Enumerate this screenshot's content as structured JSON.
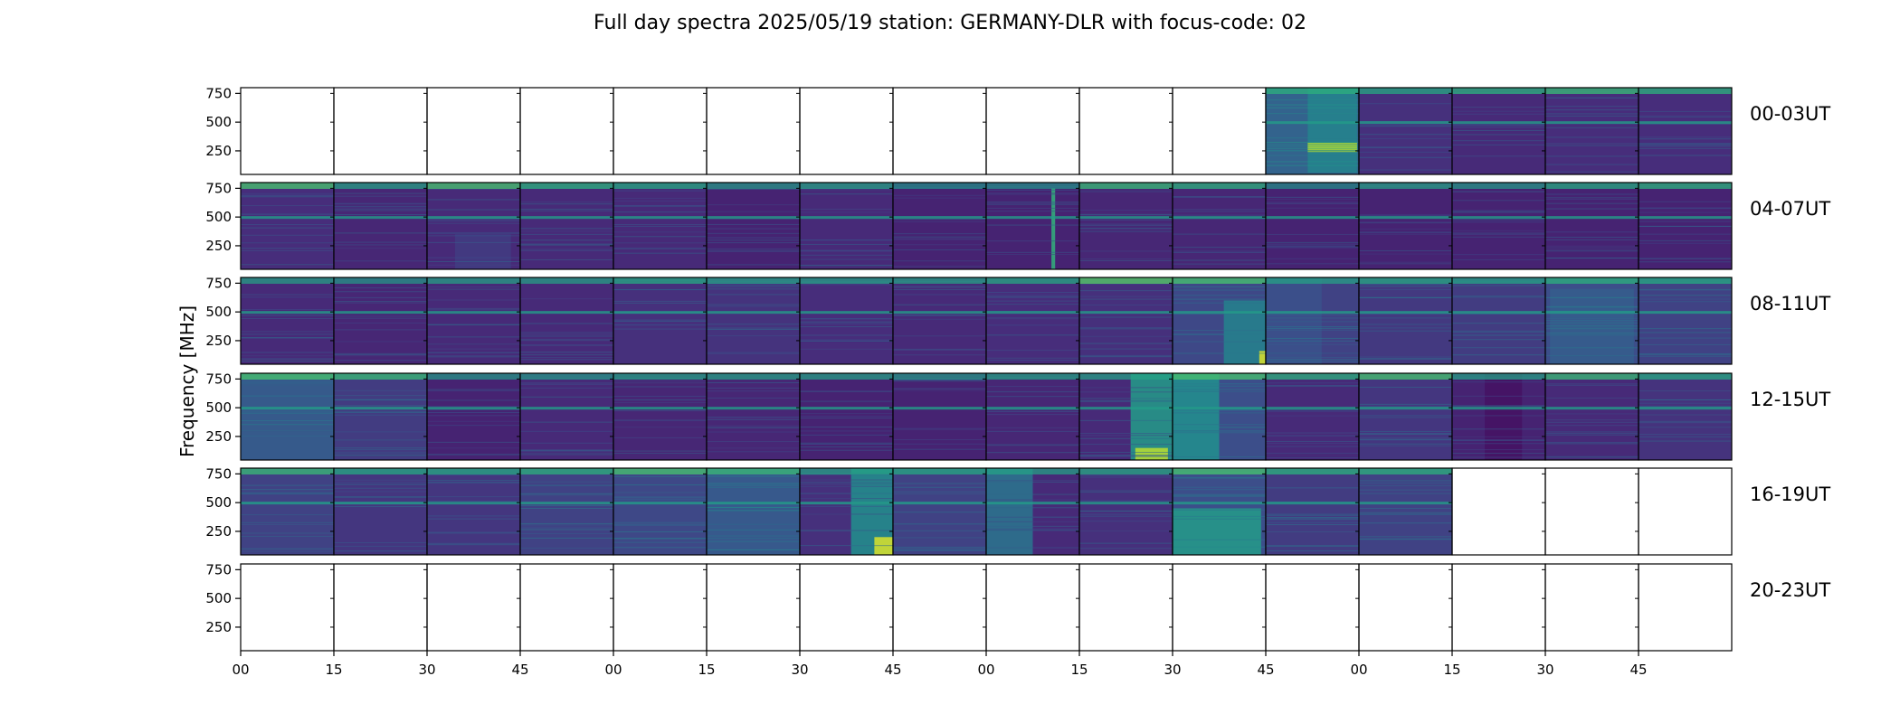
{
  "chart_data": {
    "type": "heatmap",
    "title": "Full day spectra 2025/05/19 station: GERMANY-DLR with focus-code: 02",
    "ylabel": "Frequency [MHz]",
    "xlabel": "",
    "y_ticks": [
      "750",
      "500",
      "250"
    ],
    "y_tick_values": [
      750,
      500,
      250
    ],
    "ylim": [
      45,
      800
    ],
    "x_ticks": [
      "00",
      "15",
      "30",
      "45",
      "00",
      "15",
      "30",
      "45",
      "00",
      "15",
      "30",
      "45",
      "00",
      "15",
      "30",
      "45"
    ],
    "colormap": "viridis",
    "grid": false,
    "rows": [
      {
        "label": "00-03UT",
        "intensity": [
          null,
          null,
          null,
          null,
          null,
          null,
          null,
          null,
          null,
          null,
          null,
          0.32,
          0.14,
          0.12,
          0.13,
          0.13
        ],
        "bright_top": [
          0,
          0,
          0,
          0,
          0,
          0,
          0,
          0,
          0,
          0,
          0,
          0.4,
          0.35,
          0.4,
          0.45,
          0.4
        ],
        "features": [
          {
            "panel": 11,
            "start": 0.45,
            "end": 0.98,
            "y_from": 60,
            "y_to": 800,
            "strength": 0.45
          },
          {
            "panel": 11,
            "start": 0.45,
            "end": 0.98,
            "y_from": 240,
            "y_to": 320,
            "strength": 0.9
          }
        ]
      },
      {
        "label": "04-07UT",
        "intensity": [
          0.13,
          0.11,
          0.12,
          0.12,
          0.12,
          0.1,
          0.12,
          0.1,
          0.1,
          0.11,
          0.11,
          0.1,
          0.1,
          0.1,
          0.1,
          0.1
        ],
        "bright_top": [
          0.5,
          0.3,
          0.5,
          0.4,
          0.35,
          0.25,
          0.3,
          0.2,
          0.2,
          0.45,
          0.4,
          0.2,
          0.3,
          0.25,
          0.35,
          0.4
        ],
        "features": [
          {
            "panel": 8,
            "start": 0.7,
            "end": 0.74,
            "y_from": 45,
            "y_to": 750,
            "strength": 0.65
          },
          {
            "panel": 2,
            "start": 0.3,
            "end": 0.9,
            "y_from": 45,
            "y_to": 350,
            "strength": 0.18
          }
        ]
      },
      {
        "label": "08-11UT",
        "intensity": [
          0.12,
          0.11,
          0.12,
          0.12,
          0.14,
          0.15,
          0.13,
          0.12,
          0.13,
          0.14,
          0.22,
          0.2,
          0.17,
          0.18,
          0.24,
          0.2
        ],
        "bright_top": [
          0.3,
          0.25,
          0.3,
          0.3,
          0.35,
          0.3,
          0.3,
          0.3,
          0.35,
          0.55,
          0.5,
          0.3,
          0.35,
          0.3,
          0.4,
          0.35
        ],
        "features": [
          {
            "panel": 10,
            "start": 0.55,
            "end": 1.0,
            "y_from": 45,
            "y_to": 600,
            "strength": 0.45
          },
          {
            "panel": 10,
            "start": 0.93,
            "end": 1.0,
            "y_from": 45,
            "y_to": 160,
            "strength": 0.95
          },
          {
            "panel": 14,
            "start": 0.05,
            "end": 0.95,
            "y_from": 45,
            "y_to": 700,
            "strength": 0.3
          },
          {
            "panel": 11,
            "start": 0.0,
            "end": 0.6,
            "y_from": 45,
            "y_to": 800,
            "strength": 0.25
          }
        ]
      },
      {
        "label": "12-15UT",
        "intensity": [
          0.22,
          0.18,
          0.1,
          0.12,
          0.11,
          0.11,
          0.1,
          0.1,
          0.11,
          0.12,
          0.24,
          0.12,
          0.16,
          0.1,
          0.12,
          0.15
        ],
        "bright_top": [
          0.5,
          0.45,
          0.25,
          0.25,
          0.3,
          0.3,
          0.3,
          0.25,
          0.3,
          0.3,
          0.5,
          0.4,
          0.5,
          0.3,
          0.45,
          0.35
        ],
        "features": [
          {
            "panel": 9,
            "start": 0.55,
            "end": 1.0,
            "y_from": 45,
            "y_to": 800,
            "strength": 0.55
          },
          {
            "panel": 9,
            "start": 0.6,
            "end": 0.95,
            "y_from": 45,
            "y_to": 150,
            "strength": 0.9
          },
          {
            "panel": 10,
            "start": 0.0,
            "end": 0.5,
            "y_from": 45,
            "y_to": 800,
            "strength": 0.5
          },
          {
            "panel": 0,
            "start": 0.0,
            "end": 1.0,
            "y_from": 45,
            "y_to": 800,
            "strength": 0.3
          },
          {
            "panel": 13,
            "start": 0.35,
            "end": 0.75,
            "y_from": 45,
            "y_to": 800,
            "strength": 0.05
          }
        ]
      },
      {
        "label": "16-19UT",
        "intensity": [
          0.2,
          0.16,
          0.16,
          0.2,
          0.22,
          0.28,
          0.14,
          0.2,
          0.12,
          0.14,
          0.24,
          0.18,
          0.2,
          null,
          null,
          null
        ],
        "bright_top": [
          0.45,
          0.35,
          0.35,
          0.4,
          0.5,
          0.45,
          0.3,
          0.35,
          0.3,
          0.35,
          0.5,
          0.4,
          0.4,
          0,
          0,
          0
        ],
        "features": [
          {
            "panel": 6,
            "start": 0.55,
            "end": 1.0,
            "y_from": 45,
            "y_to": 800,
            "strength": 0.5
          },
          {
            "panel": 6,
            "start": 0.8,
            "end": 1.0,
            "y_from": 45,
            "y_to": 200,
            "strength": 0.95
          },
          {
            "panel": 10,
            "start": 0.0,
            "end": 0.95,
            "y_from": 45,
            "y_to": 450,
            "strength": 0.55
          },
          {
            "panel": 8,
            "start": 0.0,
            "end": 0.5,
            "y_from": 45,
            "y_to": 800,
            "strength": 0.4
          }
        ]
      },
      {
        "label": "20-23UT",
        "intensity": [
          null,
          null,
          null,
          null,
          null,
          null,
          null,
          null,
          null,
          null,
          null,
          null,
          null,
          null,
          null,
          null
        ],
        "bright_top": [
          0,
          0,
          0,
          0,
          0,
          0,
          0,
          0,
          0,
          0,
          0,
          0,
          0,
          0,
          0,
          0
        ],
        "features": []
      }
    ]
  }
}
